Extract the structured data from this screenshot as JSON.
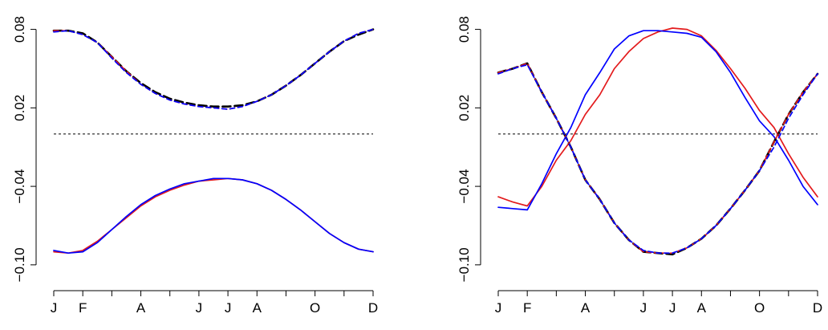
{
  "chart_data": [
    {
      "type": "line",
      "panel": "left",
      "title": "",
      "xlabel": "",
      "ylabel": "",
      "x_tick_labels": [
        "J",
        "F",
        "A",
        "J",
        "J",
        "A",
        "O",
        "D"
      ],
      "x_tick_positions_month": [
        1,
        2,
        4,
        6,
        7,
        8,
        10,
        12
      ],
      "x_minor_tick_months": [
        3,
        5,
        9,
        11
      ],
      "y_tick_values": [
        -0.1,
        -0.04,
        0.02,
        0.08
      ],
      "y_tick_labels": [
        "−0.10",
        "−0.04",
        "0.02",
        "0.08"
      ],
      "xlim": [
        1,
        12
      ],
      "ylim": [
        -0.105,
        0.1
      ],
      "reference_line": 0,
      "grid": false,
      "legend": "none",
      "x": [
        1.0,
        1.5,
        2.0,
        2.5,
        3.0,
        3.5,
        4.0,
        4.5,
        5.0,
        5.5,
        6.0,
        6.5,
        7.0,
        7.5,
        8.0,
        8.5,
        9.0,
        9.5,
        10.0,
        10.5,
        11.0,
        11.5,
        12.0
      ],
      "series": [
        {
          "color": "#000000",
          "dash": "long-dash",
          "values": [
            0.079,
            0.079,
            0.077,
            0.07,
            0.059,
            0.048,
            0.039,
            0.032,
            0.027,
            0.024,
            0.022,
            0.021,
            0.021,
            0.022,
            0.025,
            0.03,
            0.037,
            0.045,
            0.054,
            0.063,
            0.071,
            0.076,
            0.08
          ]
        },
        {
          "color": "#e31a1c",
          "dash": "dashed",
          "values": [
            0.079,
            0.079,
            0.076,
            0.07,
            0.059,
            0.048,
            0.038,
            0.031,
            0.026,
            0.023,
            0.021,
            0.02,
            0.019,
            0.021,
            0.025,
            0.03,
            0.037,
            0.045,
            0.054,
            0.063,
            0.071,
            0.077,
            0.08
          ]
        },
        {
          "color": "#0000ff",
          "dash": "dashed",
          "values": [
            0.078,
            0.079,
            0.076,
            0.07,
            0.058,
            0.047,
            0.038,
            0.031,
            0.026,
            0.023,
            0.021,
            0.02,
            0.019,
            0.021,
            0.025,
            0.03,
            0.037,
            0.045,
            0.054,
            0.063,
            0.071,
            0.077,
            0.08
          ]
        },
        {
          "color": "#e31a1c",
          "dash": "solid",
          "values": [
            -0.09,
            -0.091,
            -0.089,
            -0.082,
            -0.073,
            -0.064,
            -0.055,
            -0.048,
            -0.043,
            -0.039,
            -0.036,
            -0.035,
            -0.034,
            -0.035,
            -0.038,
            -0.043,
            -0.05,
            -0.058,
            -0.067,
            -0.076,
            -0.083,
            -0.088,
            -0.09
          ]
        },
        {
          "color": "#0000ff",
          "dash": "solid",
          "values": [
            -0.089,
            -0.091,
            -0.09,
            -0.083,
            -0.073,
            -0.063,
            -0.054,
            -0.047,
            -0.042,
            -0.038,
            -0.036,
            -0.034,
            -0.034,
            -0.035,
            -0.038,
            -0.043,
            -0.05,
            -0.058,
            -0.067,
            -0.076,
            -0.083,
            -0.088,
            -0.09
          ]
        }
      ]
    },
    {
      "type": "line",
      "panel": "right",
      "title": "",
      "xlabel": "",
      "ylabel": "",
      "x_tick_labels": [
        "J",
        "F",
        "A",
        "J",
        "J",
        "A",
        "O",
        "D"
      ],
      "x_tick_positions_month": [
        1,
        2,
        4,
        6,
        7,
        8,
        10,
        12
      ],
      "x_minor_tick_months": [
        3,
        5,
        9,
        11
      ],
      "y_tick_values": [
        -0.1,
        -0.04,
        0.02,
        0.08
      ],
      "y_tick_labels": [
        "−0.10",
        "−0.04",
        "0.02",
        "0.08"
      ],
      "xlim": [
        1,
        12
      ],
      "ylim": [
        -0.105,
        0.1
      ],
      "reference_line": 0,
      "grid": false,
      "legend": "none",
      "x": [
        1.0,
        1.5,
        2.0,
        2.5,
        3.0,
        3.5,
        4.0,
        4.5,
        5.0,
        5.5,
        6.0,
        6.5,
        7.0,
        7.5,
        8.0,
        8.5,
        9.0,
        9.5,
        10.0,
        10.5,
        11.0,
        11.5,
        12.0
      ],
      "series": [
        {
          "color": "#000000",
          "dash": "long-dash",
          "values": [
            0.047,
            0.05,
            0.054,
            0.032,
            0.012,
            -0.01,
            -0.035,
            -0.05,
            -0.068,
            -0.081,
            -0.09,
            -0.091,
            -0.092,
            -0.087,
            -0.08,
            -0.07,
            -0.057,
            -0.043,
            -0.028,
            -0.006,
            0.015,
            0.032,
            0.046
          ]
        },
        {
          "color": "#e31a1c",
          "dash": "dashed",
          "values": [
            0.047,
            0.05,
            0.054,
            0.032,
            0.012,
            -0.01,
            -0.035,
            -0.05,
            -0.068,
            -0.081,
            -0.09,
            -0.091,
            -0.091,
            -0.087,
            -0.08,
            -0.07,
            -0.057,
            -0.043,
            -0.028,
            -0.006,
            0.015,
            0.032,
            0.046
          ]
        },
        {
          "color": "#0000ff",
          "dash": "dashed",
          "values": [
            0.046,
            0.05,
            0.053,
            0.032,
            0.012,
            -0.01,
            -0.035,
            -0.05,
            -0.068,
            -0.081,
            -0.089,
            -0.091,
            -0.091,
            -0.087,
            -0.08,
            -0.07,
            -0.057,
            -0.043,
            -0.028,
            -0.01,
            0.012,
            0.03,
            0.046
          ]
        },
        {
          "color": "#e31a1c",
          "dash": "solid",
          "values": [
            -0.048,
            -0.052,
            -0.055,
            -0.04,
            -0.02,
            -0.005,
            0.015,
            0.03,
            0.05,
            0.063,
            0.073,
            0.078,
            0.081,
            0.08,
            0.075,
            0.064,
            0.05,
            0.035,
            0.018,
            0.005,
            -0.015,
            -0.033,
            -0.048
          ]
        },
        {
          "color": "#0000ff",
          "dash": "solid",
          "values": [
            -0.056,
            -0.057,
            -0.058,
            -0.038,
            -0.015,
            0.005,
            0.03,
            0.047,
            0.065,
            0.075,
            0.079,
            0.079,
            0.078,
            0.077,
            0.074,
            0.063,
            0.047,
            0.028,
            0.01,
            -0.002,
            -0.02,
            -0.04,
            -0.054
          ]
        }
      ]
    }
  ]
}
